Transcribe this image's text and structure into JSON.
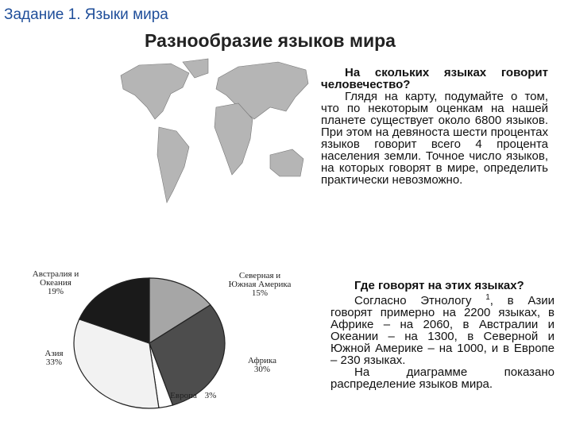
{
  "header": {
    "title": "Задание 1. Языки мира",
    "heading": "Разнообразие языков мира"
  },
  "block1": {
    "question": "На скольких языках говорит человечество?",
    "text": "Глядя на карту, подумайте о том, что по некоторым оценкам на нашей планете существует около 6800 языков. При этом на девяноста шести процентах языков говорит всего 4 процента населения земли. Точное число языков, на которых говорят в мире, определить практически невозможно."
  },
  "block2": {
    "question": "Где говорят на этих языках?",
    "text_before": "Согласно Этнологу",
    "footnote": "1",
    "text_after": ", в Азии говорят примерно на 2200 языках, в Африке – на 2060, в Австралии и Океании – на 1300, в Северной и Южной Америке – на 1000, и в Европе – 230 языках.",
    "closing": "На диаграмме показано распределение языков мира."
  },
  "pie": {
    "type": "pie",
    "slices": [
      {
        "name": [
          "Северная и",
          "Южная Америка"
        ],
        "value": 15,
        "value_label": "15%",
        "color": "#a6a6a6"
      },
      {
        "name": [
          "Африка"
        ],
        "value": 30,
        "value_label": "30%",
        "color": "#4d4d4d"
      },
      {
        "name": [
          "Европа"
        ],
        "value": 3,
        "value_label": "3%",
        "color": "#ffffff"
      },
      {
        "name": [
          "Азия"
        ],
        "value": 33,
        "value_label": "33%",
        "color": "#f2f2f2"
      },
      {
        "name": [
          "Австралия и",
          "Океания"
        ],
        "value": 19,
        "value_label": "19%",
        "color": "#1a1a1a"
      }
    ]
  }
}
